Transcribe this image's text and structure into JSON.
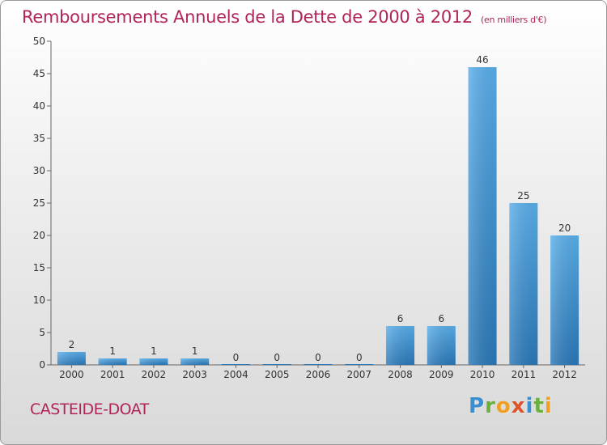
{
  "header": {
    "title": "Remboursements Annuels de la Dette de 2000 à 2012",
    "unit": "(en milliers d'€)"
  },
  "footer": {
    "place": "CASTEIDE-DOAT",
    "logo_letters": [
      {
        "ch": "P",
        "color": "#3a8fd0"
      },
      {
        "ch": "r",
        "color": "#6bb03d"
      },
      {
        "ch": "o",
        "color": "#f0a020"
      },
      {
        "ch": "x",
        "color": "#e0532a"
      },
      {
        "ch": "i",
        "color": "#3a8fd0"
      },
      {
        "ch": "t",
        "color": "#6bb03d"
      },
      {
        "ch": "i",
        "color": "#f0a020"
      }
    ]
  },
  "colors": {
    "accent": "#b0245a",
    "bar_light": "#5aaeea",
    "bar_dark": "#2a78b8"
  },
  "chart_data": {
    "type": "bar",
    "categories": [
      "2000",
      "2001",
      "2002",
      "2003",
      "2004",
      "2005",
      "2006",
      "2007",
      "2008",
      "2009",
      "2010",
      "2011",
      "2012"
    ],
    "values": [
      2,
      1,
      1,
      1,
      0,
      0,
      0,
      0,
      6,
      6,
      46,
      25,
      20
    ],
    "ylim": [
      0,
      50
    ],
    "yticks": [
      0,
      5,
      10,
      15,
      20,
      25,
      30,
      35,
      40,
      45,
      50
    ],
    "grid": false,
    "show_value_labels": true
  }
}
